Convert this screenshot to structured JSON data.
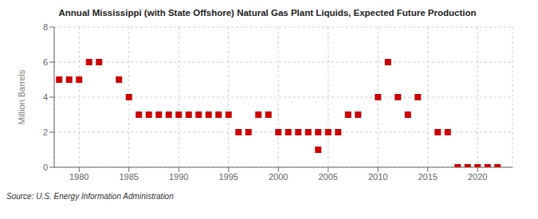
{
  "chart_data": {
    "type": "scatter",
    "title": "Annual Mississippi (with State Offshore) Natural Gas Plant Liquids, Expected Future Production",
    "y_label": "Million Barrels",
    "annotations": [
      "Source: U.S. Energy Information Administration"
    ],
    "color": "#cc0000",
    "marker": "square",
    "grid": true,
    "xlim": [
      1977.5,
      2023.5
    ],
    "xticks": [
      1980,
      1985,
      1990,
      1995,
      2000,
      2005,
      2010,
      2015,
      2020
    ],
    "ylim": [
      0,
      8
    ],
    "yticks": [
      0,
      2,
      4,
      6,
      8
    ],
    "x": [
      1978,
      1979,
      1980,
      1981,
      1982,
      1984,
      1985,
      1986,
      1987,
      1988,
      1989,
      1990,
      1991,
      1992,
      1993,
      1994,
      1995,
      1996,
      1997,
      1998,
      1999,
      2000,
      2001,
      2002,
      2003,
      2004,
      2004,
      2005,
      2006,
      2007,
      2008,
      2010,
      2011,
      2012,
      2013,
      2014,
      2016,
      2017,
      2018,
      2019,
      2020,
      2021,
      2022
    ],
    "values": [
      5,
      5,
      5,
      6,
      6,
      5,
      4,
      3,
      3,
      3,
      3,
      3,
      3,
      3,
      3,
      3,
      3,
      2,
      2,
      3,
      3,
      2,
      2,
      2,
      2,
      2,
      1,
      2,
      2,
      3,
      3,
      4,
      6,
      4,
      3,
      4,
      2,
      2,
      0,
      0,
      0,
      0,
      0
    ]
  }
}
